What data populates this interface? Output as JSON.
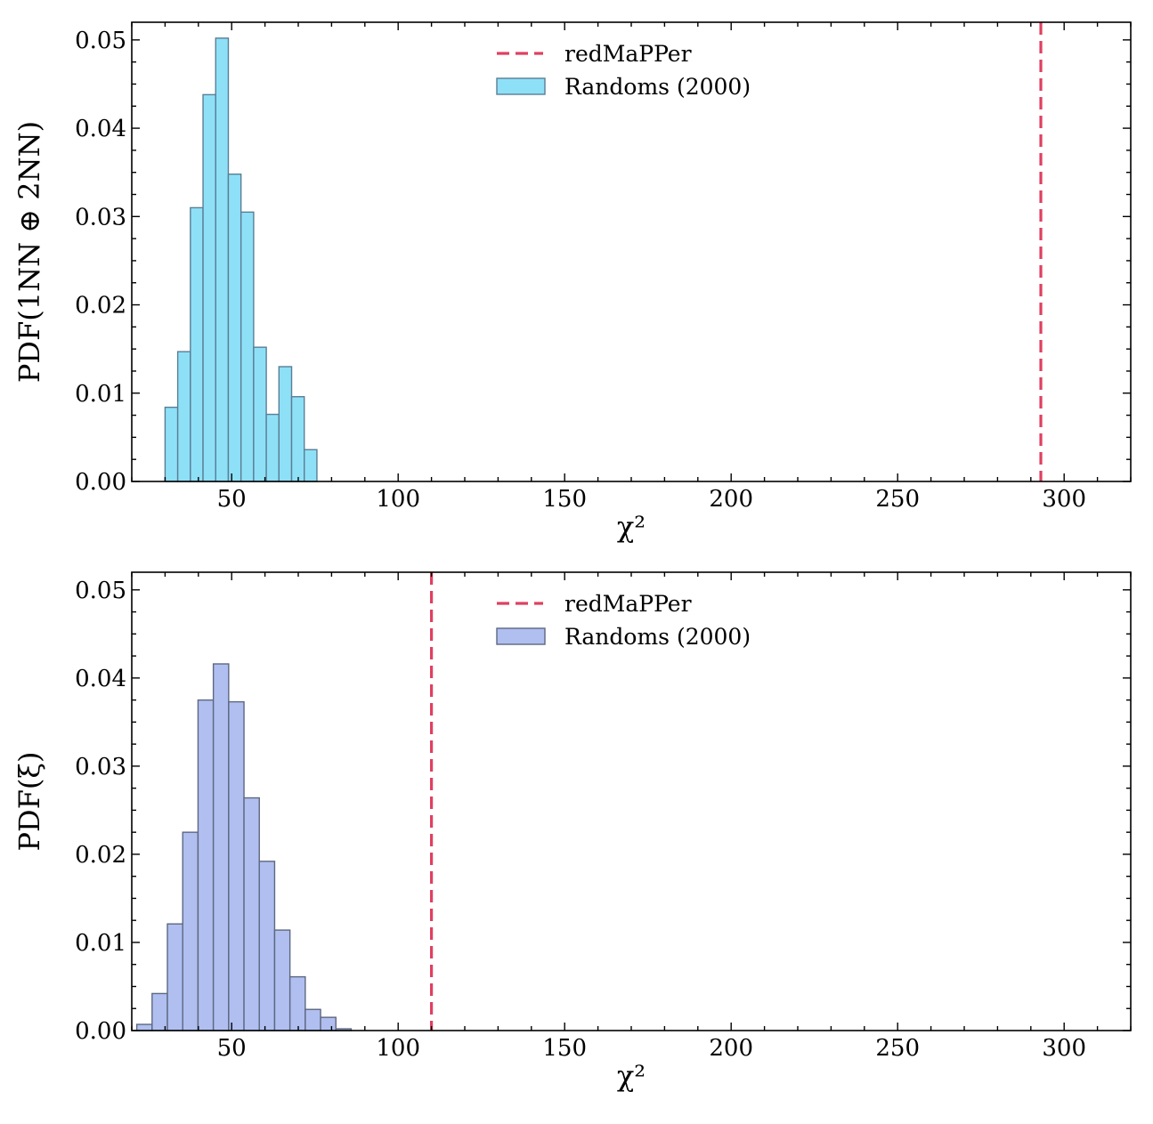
{
  "chart_data": [
    {
      "type": "bar",
      "subtype": "histogram",
      "xlabel": "χ²",
      "ylabel": "PDF(1NN ⊕ 2NN)",
      "xlim": [
        20,
        320
      ],
      "ylim": [
        0,
        0.052
      ],
      "xticks": [
        50,
        100,
        150,
        200,
        250,
        300
      ],
      "xtick_labels": [
        "50",
        "100",
        "150",
        "200",
        "250",
        "300"
      ],
      "yticks": [
        0,
        0.01,
        0.02,
        0.03,
        0.04,
        0.05
      ],
      "ytick_labels": [
        "0.00",
        "0.01",
        "0.02",
        "0.03",
        "0.04",
        "0.05"
      ],
      "bin_edges": [
        30,
        33.8,
        37.6,
        41.4,
        45.2,
        49.0,
        52.8,
        56.6,
        60.4,
        64.2,
        68.0,
        71.8,
        75.6
      ],
      "values": [
        0.0084,
        0.0147,
        0.031,
        0.0438,
        0.0502,
        0.0348,
        0.0305,
        0.0152,
        0.0076,
        0.013,
        0.0096,
        0.0036
      ],
      "bar_color": "#8ee0f7",
      "edge_color": "#5a7e94",
      "vline": {
        "name": "redMaPPer",
        "x": 293,
        "color": "#e04060"
      },
      "legend": {
        "position": "top-center",
        "entries": [
          {
            "label": "redMaPPer",
            "kind": "dashed-line",
            "color": "#e04060"
          },
          {
            "label": "Randoms (2000)",
            "kind": "patch",
            "color": "#8ee0f7"
          }
        ]
      },
      "grid": false
    },
    {
      "type": "bar",
      "subtype": "histogram",
      "xlabel": "χ²",
      "ylabel": "PDF(ξ)",
      "xlim": [
        20,
        320
      ],
      "ylim": [
        0,
        0.052
      ],
      "xticks": [
        50,
        100,
        150,
        200,
        250,
        300
      ],
      "xtick_labels": [
        "50",
        "100",
        "150",
        "200",
        "250",
        "300"
      ],
      "yticks": [
        0,
        0.01,
        0.02,
        0.03,
        0.04,
        0.05
      ],
      "ytick_labels": [
        "0.00",
        "0.01",
        "0.02",
        "0.03",
        "0.04",
        "0.05"
      ],
      "bin_edges": [
        21.5,
        26.1,
        30.7,
        35.3,
        39.9,
        44.5,
        49.1,
        53.7,
        58.3,
        62.9,
        67.5,
        72.1,
        76.7,
        81.3,
        85.9
      ],
      "values": [
        0.0007,
        0.0042,
        0.0121,
        0.0225,
        0.0375,
        0.0416,
        0.0373,
        0.0264,
        0.0192,
        0.0114,
        0.0061,
        0.0024,
        0.0015,
        0.0002
      ],
      "bar_color": "#b0bff0",
      "edge_color": "#5e6780",
      "vline": {
        "name": "redMaPPer",
        "x": 110,
        "color": "#e04060"
      },
      "legend": {
        "position": "top-center",
        "entries": [
          {
            "label": "redMaPPer",
            "kind": "dashed-line",
            "color": "#e04060"
          },
          {
            "label": "Randoms (2000)",
            "kind": "patch",
            "color": "#b0bff0"
          }
        ]
      },
      "grid": false
    }
  ]
}
